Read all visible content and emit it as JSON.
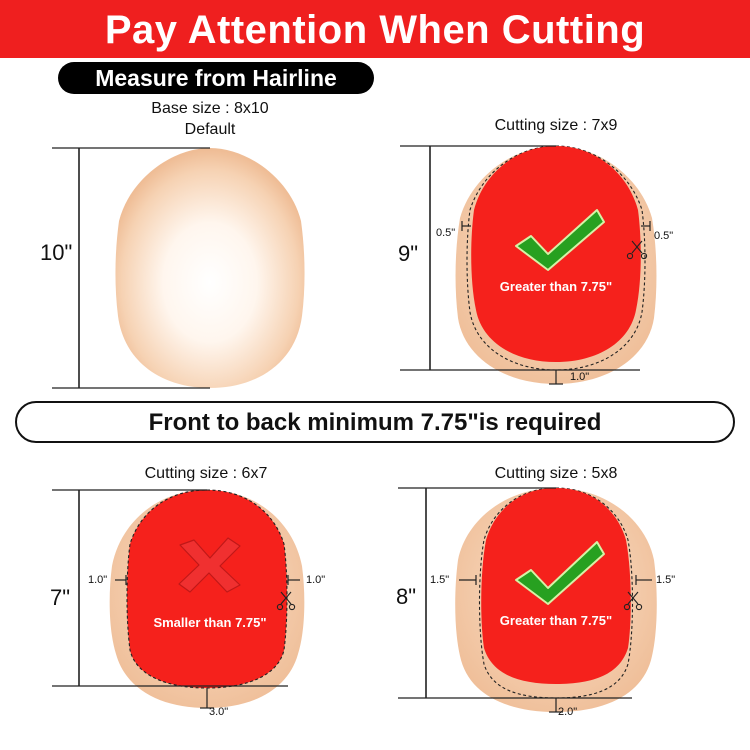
{
  "header": {
    "title": "Pay Attention When Cutting"
  },
  "subheader": {
    "label": "Measure from Hairline"
  },
  "base": {
    "size_label": "Base size : 8x10",
    "default_label": "Default",
    "length_label": "10\""
  },
  "panel_7x9": {
    "size_label": "Cutting size : 7x9",
    "length_label": "9\"",
    "side_left": "0.5\"",
    "side_right": "0.5\"",
    "back_label": "1.0\"",
    "status": "Greater than 7.75\"",
    "result": "check"
  },
  "banner_mid": {
    "text": "Front to back minimum 7.75\"is required"
  },
  "panel_6x7": {
    "size_label": "Cutting size : 6x7",
    "length_label": "7\"",
    "side_left": "1.0\"",
    "side_right": "1.0\"",
    "back_label": "3.0\"",
    "status": "Smaller than 7.75\"",
    "result": "cross"
  },
  "panel_5x8": {
    "size_label": "Cutting size : 5x8",
    "length_label": "8\"",
    "side_left": "1.5\"",
    "side_right": "1.5\"",
    "back_label": "2.0\"",
    "status": "Greater than 7.75\"",
    "result": "check"
  },
  "colors": {
    "banner_red": "#ef1f1f",
    "cut_red": "#f5211c",
    "skin": "#f2c39d",
    "check_green": "#27a020"
  }
}
